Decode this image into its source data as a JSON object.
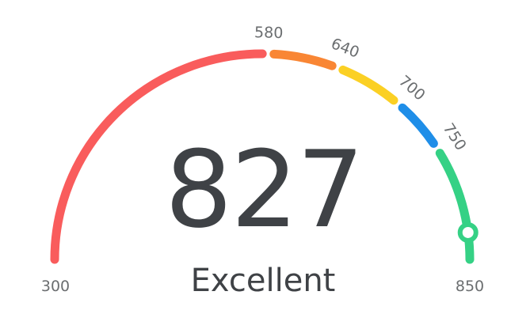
{
  "gauge": {
    "min": 300,
    "max": 850,
    "score": "827",
    "score_value": 827,
    "rating": "Excellent",
    "min_label": "300",
    "max_label": "850",
    "segments": [
      {
        "from": 300,
        "to": 580,
        "color": "#f95c5c"
      },
      {
        "from": 580,
        "to": 640,
        "color": "#f98634"
      },
      {
        "from": 640,
        "to": 700,
        "color": "#fbd024"
      },
      {
        "from": 700,
        "to": 750,
        "color": "#1f8ee8"
      },
      {
        "from": 750,
        "to": 850,
        "color": "#35d185"
      }
    ],
    "ticks": [
      {
        "value": 580,
        "label": "580"
      },
      {
        "value": 640,
        "label": "640"
      },
      {
        "value": 700,
        "label": "700"
      },
      {
        "value": 750,
        "label": "750"
      }
    ],
    "indicator_icon": "ring-marker-icon"
  }
}
